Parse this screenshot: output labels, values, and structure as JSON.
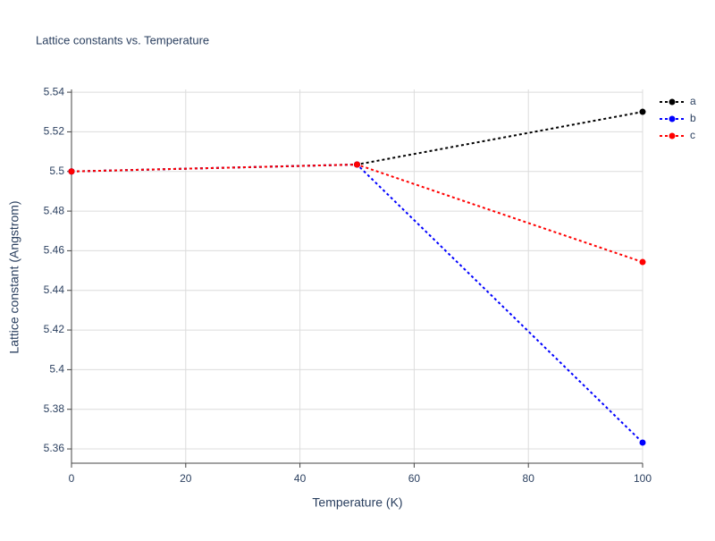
{
  "chart_data": {
    "type": "line",
    "title": "Lattice constants vs. Temperature",
    "x_label": "Temperature (K)",
    "y_label": "Lattice constant (Angstrom)",
    "x": [
      0,
      50,
      100
    ],
    "series": [
      {
        "name": "a",
        "color": "#000000",
        "values": [
          5.5,
          5.5035,
          5.5301
        ]
      },
      {
        "name": "b",
        "color": "#0000ff",
        "values": [
          5.5,
          5.5035,
          5.3632
        ]
      },
      {
        "name": "c",
        "color": "#ff0000",
        "values": [
          5.5,
          5.5035,
          5.4543
        ]
      }
    ],
    "xlim": [
      0,
      100
    ],
    "xticks": [
      0,
      20,
      40,
      60,
      80,
      100
    ],
    "ylim": [
      5.3528,
      5.5414
    ],
    "yticks": [
      5.36,
      5.38,
      5.4,
      5.42,
      5.44,
      5.46,
      5.48,
      5.5,
      5.52,
      5.54
    ],
    "grid": true,
    "legend": "top-right",
    "line_style": "dotted"
  }
}
